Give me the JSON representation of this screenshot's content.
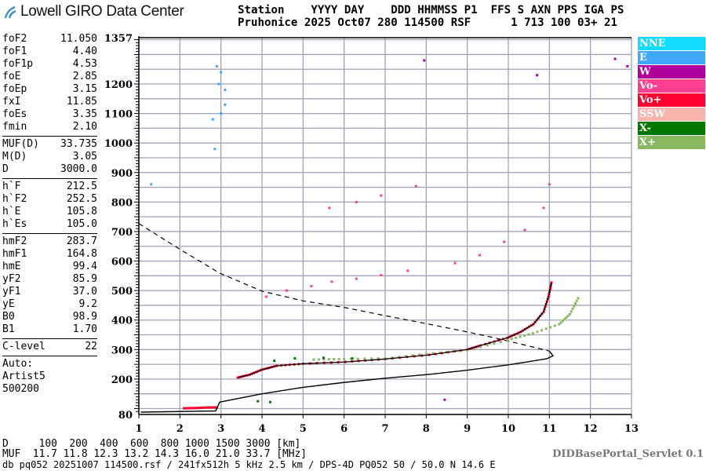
{
  "logo": {
    "text": "Lowell GIRO Data Center"
  },
  "header": {
    "line1": "Station    YYYY DAY    DDD HHMMSS P1  FFS S AXN PPS IGA PS",
    "line2": "Pruhonice 2025 Oct07 280 114500 RSF      1 713 100 03+ 21"
  },
  "params": {
    "group1": [
      [
        "foF2",
        "11.050"
      ],
      [
        "foF1",
        "4.40"
      ],
      [
        "foF1p",
        "4.53"
      ],
      [
        "foE",
        "2.85"
      ],
      [
        "foEp",
        "3.15"
      ],
      [
        "fxI",
        "11.85"
      ],
      [
        "foEs",
        "3.35"
      ],
      [
        "fmin",
        "2.10"
      ]
    ],
    "group2": [
      [
        "MUF(D)",
        "33.735"
      ],
      [
        "M(D)",
        "3.05"
      ],
      [
        "D",
        "3000.0"
      ]
    ],
    "group3": [
      [
        "h`F",
        "212.5"
      ],
      [
        "h`F2",
        "252.5"
      ],
      [
        "h`E",
        "105.8"
      ],
      [
        "h`Es",
        "105.0"
      ]
    ],
    "group4": [
      [
        "hmF2",
        "283.7"
      ],
      [
        "hmF1",
        "164.8"
      ],
      [
        "hmE",
        "99.4"
      ],
      [
        "yF2",
        "85.9"
      ],
      [
        "yF1",
        "37.0"
      ],
      [
        "yE",
        "9.2"
      ],
      [
        "B0",
        "98.9"
      ],
      [
        "B1",
        "1.70"
      ]
    ],
    "group5": [
      [
        "C-level",
        "22"
      ]
    ],
    "auto": [
      "Auto:",
      "Artist5",
      "500200"
    ]
  },
  "legend": [
    {
      "label": "NNE",
      "color": "#10dcff"
    },
    {
      "label": "E",
      "color": "#40a8f8"
    },
    {
      "label": "W",
      "color": "#b0009c"
    },
    {
      "label": "Vo-",
      "color": "#ff4090"
    },
    {
      "label": "Vo+",
      "color": "#ff0030"
    },
    {
      "label": "SSW",
      "color": "#f8b4ac"
    },
    {
      "label": "X-",
      "color": "#007800"
    },
    {
      "label": "X+",
      "color": "#88b860"
    }
  ],
  "bottom": {
    "d_row": "D     100  200  400  600  800 1000 1500 3000 [km]",
    "muf_row": "MUF  11.7 11.8 12.3 13.2 14.3 16.0 21.0 33.7 [MHz]",
    "info": "db pq052 20251007 114500.rsf / 241fx512h 5 kHz 2.5 km / DPS-4D PQ052 50 / 50.0 N 14.6 E",
    "servlet": "DIDBasePortal_Servlet 0.1"
  },
  "chart_data": {
    "type": "scatter",
    "xlim": [
      1,
      13
    ],
    "ylim": [
      80,
      1357
    ],
    "x_ticks": [
      "1",
      "2",
      "3",
      "4",
      "5",
      "6",
      "7",
      "8",
      "9",
      "10",
      "11",
      "12",
      "13"
    ],
    "y_ticks": [
      "1357",
      "1200",
      "1100",
      "1000",
      "900",
      "800",
      "700",
      "600",
      "500",
      "400",
      "300",
      "200",
      "80"
    ],
    "grid": {
      "x_step": 1,
      "y_step": 50
    },
    "series": [
      {
        "name": "Vo+",
        "color": "#ff0030",
        "points": [
          [
            2.1,
            101
          ],
          [
            2.4,
            102
          ],
          [
            2.7,
            104
          ],
          [
            2.9,
            104
          ],
          [
            3.41,
            205
          ],
          [
            3.7,
            215
          ],
          [
            4.0,
            232
          ],
          [
            4.36,
            245
          ],
          [
            5.0,
            252
          ],
          [
            6.03,
            258
          ],
          [
            7.0,
            268
          ],
          [
            8.07,
            282
          ],
          [
            9.0,
            300
          ],
          [
            9.33,
            314
          ],
          [
            9.98,
            340
          ],
          [
            10.3,
            360
          ],
          [
            10.61,
            386
          ],
          [
            10.86,
            428
          ],
          [
            10.98,
            480
          ],
          [
            11.05,
            527
          ]
        ]
      },
      {
        "name": "X+",
        "color": "#88b860",
        "points": [
          [
            5.26,
            266
          ],
          [
            6.0,
            268
          ],
          [
            7.0,
            270
          ],
          [
            8.0,
            285
          ],
          [
            9.0,
            298
          ],
          [
            9.98,
            332
          ],
          [
            10.6,
            355
          ],
          [
            11.24,
            386
          ],
          [
            11.5,
            420
          ],
          [
            11.7,
            474
          ]
        ]
      },
      {
        "name": "X-",
        "color": "#007800",
        "points": [
          [
            4.3,
            262
          ],
          [
            4.8,
            270
          ],
          [
            5.5,
            272
          ],
          [
            6.2,
            270
          ],
          [
            3.9,
            125
          ],
          [
            4.2,
            122
          ]
        ]
      },
      {
        "name": "Vo-",
        "color": "#ff4090",
        "points": [
          [
            4.1,
            479
          ],
          [
            4.6,
            500
          ],
          [
            5.2,
            515
          ],
          [
            5.7,
            530
          ],
          [
            6.3,
            540
          ],
          [
            6.9,
            552
          ],
          [
            7.55,
            567
          ],
          [
            5.64,
            780
          ],
          [
            6.3,
            800
          ],
          [
            6.9,
            822
          ],
          [
            7.75,
            854
          ],
          [
            8.7,
            593
          ],
          [
            9.3,
            620
          ],
          [
            9.9,
            665
          ],
          [
            10.4,
            705
          ],
          [
            10.86,
            780
          ],
          [
            11.0,
            860
          ]
        ]
      },
      {
        "name": "E",
        "color": "#40a8f8",
        "points": [
          [
            2.9,
            1260
          ],
          [
            3.0,
            1240
          ],
          [
            2.95,
            1200
          ],
          [
            3.0,
            1100
          ],
          [
            2.8,
            1080
          ],
          [
            3.1,
            1130
          ],
          [
            2.85,
            980
          ],
          [
            3.1,
            1180
          ],
          [
            1.3,
            860
          ]
        ]
      },
      {
        "name": "W",
        "color": "#b0009c",
        "points": [
          [
            7.95,
            1280
          ],
          [
            12.6,
            1285
          ],
          [
            12.9,
            1260
          ],
          [
            8.45,
            130
          ],
          [
            10.7,
            1230
          ]
        ]
      }
    ],
    "profile_curve": [
      [
        1.05,
        88
      ],
      [
        2.87,
        92
      ],
      [
        2.97,
        122
      ],
      [
        4.0,
        150
      ],
      [
        5.0,
        172
      ],
      [
        6.03,
        189
      ],
      [
        7.0,
        203
      ],
      [
        8.07,
        216
      ],
      [
        9.0,
        230
      ],
      [
        9.98,
        248
      ],
      [
        10.5,
        259
      ],
      [
        10.94,
        269
      ],
      [
        11.09,
        279
      ],
      [
        11.0,
        295
      ]
    ],
    "muf_curve": [
      [
        1.0,
        727
      ],
      [
        2.01,
        639
      ],
      [
        2.97,
        559
      ],
      [
        4.0,
        498
      ],
      [
        5.0,
        465
      ],
      [
        6.03,
        442
      ],
      [
        7.0,
        415
      ],
      [
        8.07,
        386
      ],
      [
        9.0,
        360
      ],
      [
        9.66,
        340
      ],
      [
        10.5,
        312
      ],
      [
        11.0,
        295
      ]
    ]
  }
}
